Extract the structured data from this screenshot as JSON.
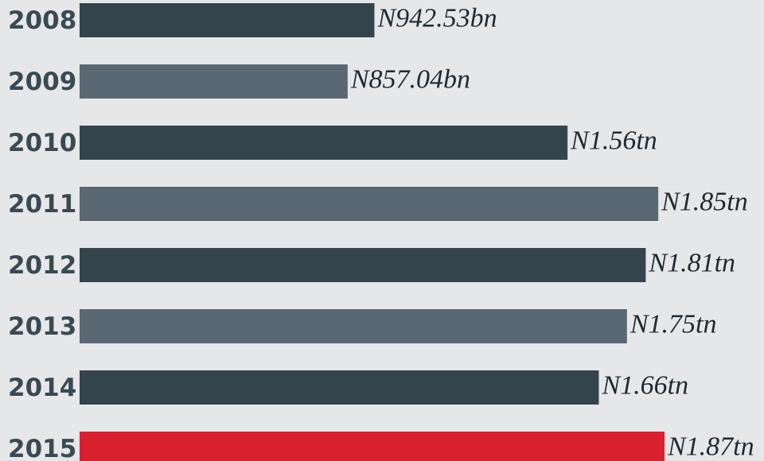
{
  "chart_data": {
    "type": "hbar",
    "categories": [
      "2008",
      "2009",
      "2010",
      "2011",
      "2012",
      "2013",
      "2014",
      "2015"
    ],
    "values": [
      942.53,
      857.04,
      1560,
      1850,
      1810,
      1750,
      1660,
      1870
    ],
    "value_labels": [
      "N942.53bn",
      "N857.04bn",
      "N1.56tn",
      "N1.85tn",
      "N1.81tn",
      "N1.75tn",
      "N1.66tn",
      "N1.87tn"
    ],
    "colors": [
      "#34444d",
      "#5a6874",
      "#34444d",
      "#5a6874",
      "#34444d",
      "#5a6874",
      "#34444d",
      "#d9202e"
    ]
  }
}
